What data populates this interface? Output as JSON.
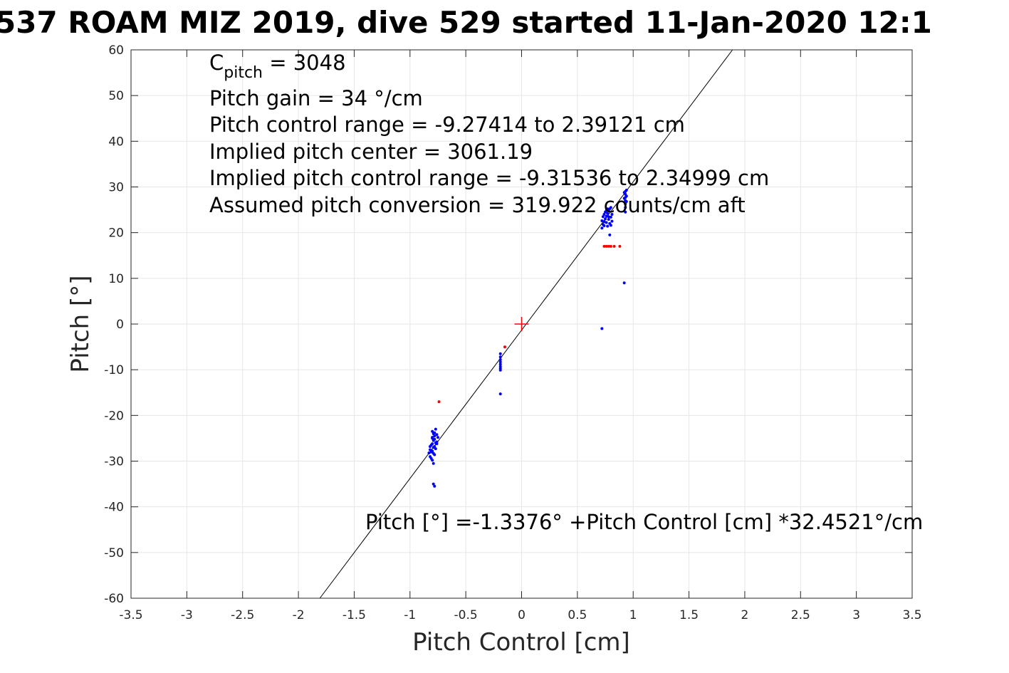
{
  "chart_data": {
    "type": "scatter",
    "title": "537 ROAM MIZ 2019, dive 529 started 11-Jan-2020 12:1",
    "xlabel": "Pitch Control [cm]",
    "ylabel": "Pitch [°]",
    "xlim": [
      -3.5,
      3.5
    ],
    "ylim": [
      -60,
      60
    ],
    "xticks": [
      -3.5,
      -3,
      -2.5,
      -2,
      -1.5,
      -1,
      -0.5,
      0,
      0.5,
      1,
      1.5,
      2,
      2.5,
      3,
      3.5
    ],
    "xtick_labels": [
      "-3.5",
      "-3",
      "-2.5",
      "-2",
      "-1.5",
      "-1",
      "-0.5",
      "0",
      "0.5",
      "1",
      "1.5",
      "2",
      "2.5",
      "3",
      "3.5"
    ],
    "yticks": [
      -60,
      -50,
      -40,
      -30,
      -20,
      -10,
      0,
      10,
      20,
      30,
      40,
      50,
      60
    ],
    "ytick_labels": [
      "-60",
      "-50",
      "-40",
      "-30",
      "-20",
      "-10",
      "0",
      "10",
      "20",
      "30",
      "40",
      "50",
      "60"
    ],
    "grid": true,
    "fit_line": {
      "intercept": -1.3376,
      "slope": 32.4521,
      "color": "#000000"
    },
    "center_marker": {
      "x": 0,
      "y": 0,
      "color": "#ff0000"
    },
    "annotations": {
      "cpitch_base": "C",
      "cpitch_sub": "pitch",
      "cpitch_value": " = 3048",
      "lines": [
        "Pitch gain = 34 °/cm",
        "Pitch control range = -9.27414 to 2.39121 cm",
        "Implied pitch center = 3061.19",
        "Implied pitch control range = -9.31536 to 2.34999 cm",
        "Assumed pitch conversion = 319.922 counts/cm aft"
      ],
      "fit_equation": "Pitch [°] =-1.3376° +Pitch Control [cm] *32.4521°/cm"
    },
    "series": [
      {
        "color": "#0000ff",
        "points": [
          [
            -0.8,
            -23.5
          ],
          [
            -0.79,
            -24.0
          ],
          [
            -0.78,
            -24.5
          ],
          [
            -0.77,
            -23.0
          ],
          [
            -0.76,
            -24.2
          ],
          [
            -0.8,
            -25.0
          ],
          [
            -0.79,
            -25.5
          ],
          [
            -0.78,
            -25.2
          ],
          [
            -0.77,
            -26.0
          ],
          [
            -0.76,
            -25.8
          ],
          [
            -0.81,
            -26.5
          ],
          [
            -0.8,
            -26.2
          ],
          [
            -0.79,
            -27.0
          ],
          [
            -0.78,
            -26.8
          ],
          [
            -0.77,
            -27.3
          ],
          [
            -0.82,
            -27.5
          ],
          [
            -0.81,
            -28.0
          ],
          [
            -0.8,
            -27.8
          ],
          [
            -0.79,
            -28.3
          ],
          [
            -0.78,
            -28.6
          ],
          [
            -0.83,
            -28.2
          ],
          [
            -0.82,
            -29.0
          ],
          [
            -0.81,
            -29.4
          ],
          [
            -0.8,
            -29.8
          ],
          [
            -0.79,
            -30.5
          ],
          [
            -0.82,
            -26.8
          ],
          [
            -0.8,
            -24.8
          ],
          [
            -0.78,
            -23.8
          ],
          [
            -0.76,
            -26.2
          ],
          [
            -0.75,
            -24.8
          ],
          [
            -0.79,
            -35.0
          ],
          [
            -0.78,
            -35.5
          ],
          [
            -0.19,
            -6.5
          ],
          [
            -0.19,
            -7.2
          ],
          [
            -0.19,
            -7.8
          ],
          [
            -0.19,
            -8.3
          ],
          [
            -0.19,
            -8.8
          ],
          [
            -0.19,
            -9.3
          ],
          [
            -0.19,
            -9.7
          ],
          [
            -0.19,
            -10.1
          ],
          [
            -0.19,
            -15.3
          ],
          [
            0.72,
            -1.0
          ],
          [
            0.92,
            9.0
          ],
          [
            0.79,
            19.5
          ],
          [
            0.72,
            21.0
          ],
          [
            0.73,
            21.8
          ],
          [
            0.74,
            22.4
          ],
          [
            0.75,
            23.0
          ],
          [
            0.76,
            23.6
          ],
          [
            0.77,
            24.2
          ],
          [
            0.78,
            24.8
          ],
          [
            0.79,
            25.2
          ],
          [
            0.8,
            25.5
          ],
          [
            0.74,
            21.5
          ],
          [
            0.76,
            22.2
          ],
          [
            0.78,
            22.9
          ],
          [
            0.8,
            23.4
          ],
          [
            0.81,
            24.0
          ],
          [
            0.73,
            23.5
          ],
          [
            0.75,
            24.5
          ],
          [
            0.77,
            25.2
          ],
          [
            0.79,
            22.0
          ],
          [
            0.8,
            21.6
          ],
          [
            0.72,
            22.6
          ],
          [
            0.74,
            24.0
          ],
          [
            0.76,
            24.8
          ],
          [
            0.78,
            23.5
          ],
          [
            0.81,
            22.5
          ],
          [
            0.77,
            21.4
          ],
          [
            0.93,
            24.5
          ],
          [
            0.93,
            25.5
          ],
          [
            0.93,
            26.3
          ],
          [
            0.93,
            27.0
          ],
          [
            0.93,
            27.7
          ],
          [
            0.93,
            28.4
          ],
          [
            0.93,
            29.0
          ],
          [
            0.94,
            26.8
          ],
          [
            0.94,
            28.0
          ],
          [
            0.94,
            29.3
          ],
          [
            0.92,
            27.5
          ],
          [
            0.92,
            28.8
          ]
        ]
      },
      {
        "color": "#ff0000",
        "points": [
          [
            -0.74,
            -17.0
          ],
          [
            -0.15,
            -5.0
          ],
          [
            0.74,
            17.0
          ],
          [
            0.76,
            17.0
          ],
          [
            0.78,
            17.0
          ],
          [
            0.8,
            17.0
          ],
          [
            0.83,
            17.0
          ],
          [
            0.88,
            17.0
          ]
        ]
      }
    ]
  }
}
